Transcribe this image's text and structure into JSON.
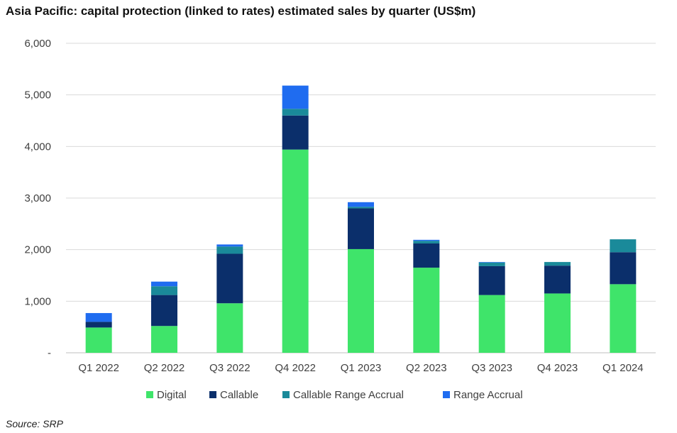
{
  "title": "Asia Pacific: capital protection (linked to rates) estimated sales by quarter (US$m)",
  "source": "Source: SRP",
  "chart_data": {
    "type": "bar",
    "stacked": true,
    "title": "Asia Pacific: capital protection (linked to rates) estimated sales by quarter (US$m)",
    "xlabel": "",
    "ylabel": "",
    "ylim": [
      0,
      6000
    ],
    "yticks": [
      0,
      1000,
      2000,
      3000,
      4000,
      5000,
      6000
    ],
    "ytick_labels": [
      "-",
      "1,000",
      "2,000",
      "3,000",
      "4,000",
      "5,000",
      "6,000"
    ],
    "grid": true,
    "legend_position": "bottom",
    "categories": [
      "Q1 2022",
      "Q2 2022",
      "Q3 2022",
      "Q4 2022",
      "Q1 2023",
      "Q2 2023",
      "Q3 2023",
      "Q4 2023",
      "Q1 2024"
    ],
    "series": [
      {
        "name": "Digital",
        "color": "#3fe46a",
        "values": [
          490,
          520,
          960,
          3940,
          2010,
          1650,
          1120,
          1150,
          1330
        ]
      },
      {
        "name": "Callable",
        "color": "#0b2f6b",
        "values": [
          110,
          600,
          960,
          660,
          790,
          470,
          560,
          540,
          620
        ]
      },
      {
        "name": "Callable Range Accrual",
        "color": "#1a8a9a",
        "values": [
          0,
          170,
          140,
          130,
          30,
          50,
          70,
          70,
          250
        ]
      },
      {
        "name": "Range Accrual",
        "color": "#1f6cf0",
        "values": [
          170,
          90,
          40,
          450,
          90,
          20,
          10,
          0,
          0
        ]
      }
    ]
  }
}
